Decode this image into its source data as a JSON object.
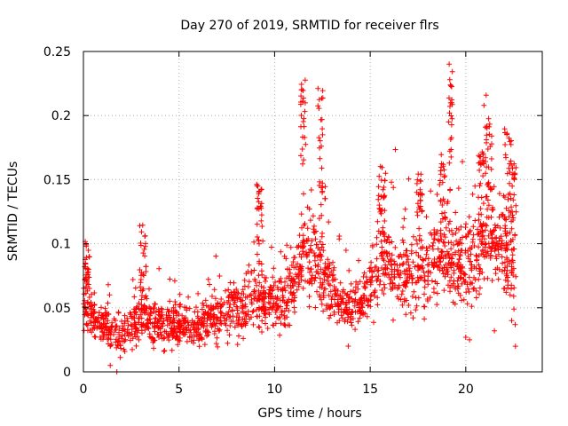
{
  "chart_data": {
    "type": "scatter",
    "title": "Day 270 of 2019, SRMTID for receiver flrs",
    "xlabel": "GPS time / hours",
    "ylabel": "SRMTID / TECUs",
    "xlim": [
      0,
      24
    ],
    "ylim": [
      0,
      0.25
    ],
    "xticks": [
      0,
      5,
      10,
      15,
      20
    ],
    "xtick_labels": [
      "0",
      "5",
      "10",
      "15",
      "20"
    ],
    "yticks": [
      0,
      0.05,
      0.1,
      0.15,
      0.2,
      0.25
    ],
    "ytick_labels": [
      "0",
      "0.05",
      "0.1",
      "0.15",
      "0.2",
      "0.25"
    ],
    "grid": true,
    "marker": "plus",
    "color": "#ff0000",
    "trend": [
      [
        0.0,
        0.055
      ],
      [
        0.5,
        0.042
      ],
      [
        1.0,
        0.036
      ],
      [
        1.5,
        0.031
      ],
      [
        2.0,
        0.028
      ],
      [
        2.5,
        0.033
      ],
      [
        3.0,
        0.042
      ],
      [
        3.5,
        0.04
      ],
      [
        4.0,
        0.038
      ],
      [
        5.0,
        0.036
      ],
      [
        6.0,
        0.038
      ],
      [
        7.0,
        0.045
      ],
      [
        8.0,
        0.05
      ],
      [
        9.0,
        0.056
      ],
      [
        10.0,
        0.055
      ],
      [
        10.8,
        0.06
      ],
      [
        11.5,
        0.09
      ],
      [
        12.2,
        0.085
      ],
      [
        12.8,
        0.07
      ],
      [
        13.3,
        0.055
      ],
      [
        14.0,
        0.05
      ],
      [
        14.5,
        0.055
      ],
      [
        15.0,
        0.07
      ],
      [
        15.5,
        0.08
      ],
      [
        16.0,
        0.08
      ],
      [
        17.0,
        0.075
      ],
      [
        18.0,
        0.08
      ],
      [
        19.0,
        0.085
      ],
      [
        20.0,
        0.085
      ],
      [
        21.0,
        0.1
      ],
      [
        21.5,
        0.105
      ],
      [
        22.0,
        0.095
      ],
      [
        22.6,
        0.07
      ]
    ],
    "spikes": [
      {
        "x": 0.2,
        "y": 0.102,
        "width": 0.12
      },
      {
        "x": 3.1,
        "y": 0.115,
        "width": 0.18
      },
      {
        "x": 9.2,
        "y": 0.148,
        "width": 0.15
      },
      {
        "x": 11.5,
        "y": 0.228,
        "width": 0.14
      },
      {
        "x": 12.4,
        "y": 0.228,
        "width": 0.14
      },
      {
        "x": 15.6,
        "y": 0.162,
        "width": 0.18
      },
      {
        "x": 17.6,
        "y": 0.155,
        "width": 0.15
      },
      {
        "x": 18.8,
        "y": 0.17,
        "width": 0.15
      },
      {
        "x": 19.2,
        "y": 0.241,
        "width": 0.1
      },
      {
        "x": 20.8,
        "y": 0.172,
        "width": 0.15
      },
      {
        "x": 21.2,
        "y": 0.198,
        "width": 0.18
      },
      {
        "x": 22.2,
        "y": 0.192,
        "width": 0.18
      },
      {
        "x": 22.5,
        "y": 0.165,
        "width": 0.15
      }
    ],
    "outliers": [
      [
        1.75,
        0.0
      ],
      [
        1.4,
        0.005
      ],
      [
        1.3,
        0.068
      ],
      [
        9.1,
        0.128
      ],
      [
        15.8,
        0.155
      ],
      [
        20.0,
        0.027
      ],
      [
        20.2,
        0.025
      ],
      [
        21.5,
        0.032
      ],
      [
        22.4,
        0.04
      ],
      [
        22.6,
        0.02
      ]
    ]
  }
}
